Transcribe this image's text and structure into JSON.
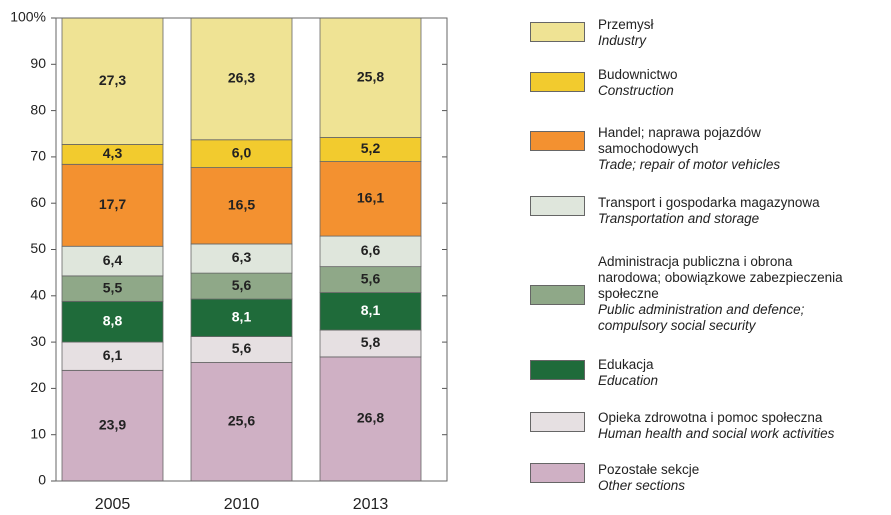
{
  "chart_data": {
    "type": "stacked_bar",
    "categories": [
      "2005",
      "2010",
      "2013"
    ],
    "ylim": [
      0,
      100
    ],
    "yticks": [
      0,
      10,
      20,
      30,
      40,
      50,
      60,
      70,
      80,
      90,
      {
        "value": 100,
        "label": "100%"
      }
    ],
    "series": [
      {
        "name": "Pozostałe sekcje",
        "name_en": "Other sections",
        "color": "#cfb0c4",
        "values": [
          23.9,
          25.6,
          26.8
        ],
        "value_labels": [
          "23,9",
          "25,6",
          "26,8"
        ]
      },
      {
        "name": "Opieka zdrowotna i pomoc społeczna",
        "name_en": "Human health and social work activities",
        "color": "#e6e0e2",
        "values": [
          6.1,
          5.6,
          5.8
        ],
        "value_labels": [
          "6,1",
          "5,6",
          "5,8"
        ]
      },
      {
        "name": "Edukacja",
        "name_en": "Education",
        "color": "#1f6b3a",
        "values": [
          8.8,
          8.1,
          8.1
        ],
        "value_labels": [
          "8,8",
          "8,1",
          "8,1"
        ]
      },
      {
        "name": "Administracja publiczna i obrona\nnarodowa; obowiązkowe zabezpieczenia\nspołeczne",
        "name_en": "Public administration and defence;\ncompulsory social security",
        "color": "#8fa888",
        "values": [
          5.5,
          5.6,
          5.6
        ],
        "value_labels": [
          "5,5",
          "5,6",
          "5,6"
        ]
      },
      {
        "name": "Transport i gospodarka magazynowa",
        "name_en": "Transportation and storage",
        "color": "#dfe6dc",
        "values": [
          6.4,
          6.3,
          6.6
        ],
        "value_labels": [
          "6,4",
          "6,3",
          "6,6"
        ]
      },
      {
        "name": "Handel; naprawa pojazdów\n samochodowych",
        "name_en": "Trade; repair of motor vehicles",
        "color": "#f39130",
        "values": [
          17.7,
          16.5,
          16.1
        ],
        "value_labels": [
          "17,7",
          "16,5",
          "16,1"
        ]
      },
      {
        "name": "Budownictwo",
        "name_en": "Construction",
        "color": "#f2cb2e",
        "values": [
          4.3,
          6.0,
          5.2
        ],
        "value_labels": [
          "4,3",
          "6,0",
          "5,2"
        ]
      },
      {
        "name": "Przemysł",
        "name_en": "Industry",
        "color": "#efe394",
        "values": [
          27.3,
          26.3,
          25.8
        ],
        "value_labels": [
          "27,3",
          "26,3",
          "25,8"
        ]
      }
    ]
  }
}
